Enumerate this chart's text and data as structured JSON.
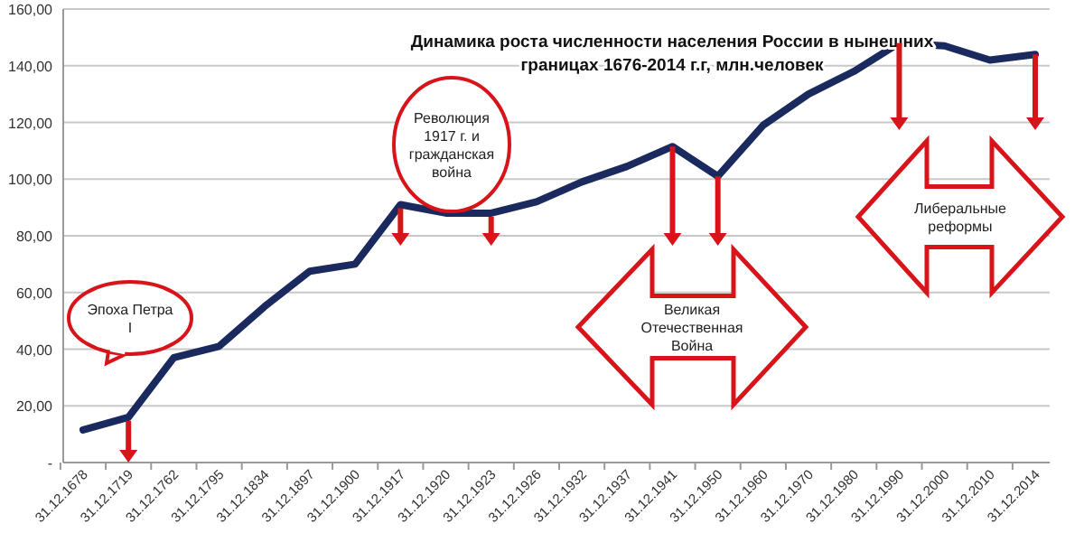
{
  "chart_data": {
    "type": "line",
    "title": "Динамика  роста численности населения России  в нынешних границах  1676-2014 г.г, млн.человек",
    "categories": [
      "31.12.1678",
      "31.12.1719",
      "31.12.1762",
      "31.12.1795",
      "31.12.1834",
      "31.12.1897",
      "31.12.1900",
      "31.12.1917",
      "31.12.1920",
      "31.12.1923",
      "31.12.1926",
      "31.12.1932",
      "31.12.1937",
      "31.12.1941",
      "31.12.1950",
      "31.12.1960",
      "31.12.1970",
      "31.12.1980",
      "31.12.1990",
      "31.12.2000",
      "31.12.2010",
      "31.12.2014"
    ],
    "series": [
      {
        "color": "#1a2a5e",
        "values": [
          11.5,
          16,
          37,
          41,
          55,
          67.5,
          70,
          91,
          88,
          88,
          92,
          99,
          104.5,
          111.5,
          101,
          119,
          130,
          138,
          148,
          147,
          142,
          144
        ]
      }
    ],
    "ylim": [
      0,
      160
    ],
    "yticks": [
      {
        "value": 0,
        "label": "-"
      },
      {
        "value": 20,
        "label": "20,00"
      },
      {
        "value": 40,
        "label": "40,00"
      },
      {
        "value": 60,
        "label": "60,00"
      },
      {
        "value": 80,
        "label": "80,00"
      },
      {
        "value": 100,
        "label": "100,00"
      },
      {
        "value": 120,
        "label": "120,00"
      },
      {
        "value": 140,
        "label": "140,00"
      },
      {
        "value": 160,
        "label": "160,00"
      }
    ],
    "grid": "y",
    "marker": "none",
    "line_style": "solid",
    "annotations": [
      "Эпоха Петра I",
      "Революция 1917 г. и гражданская война",
      "Великая Отечественная Война",
      "Либеральные реформы"
    ]
  }
}
